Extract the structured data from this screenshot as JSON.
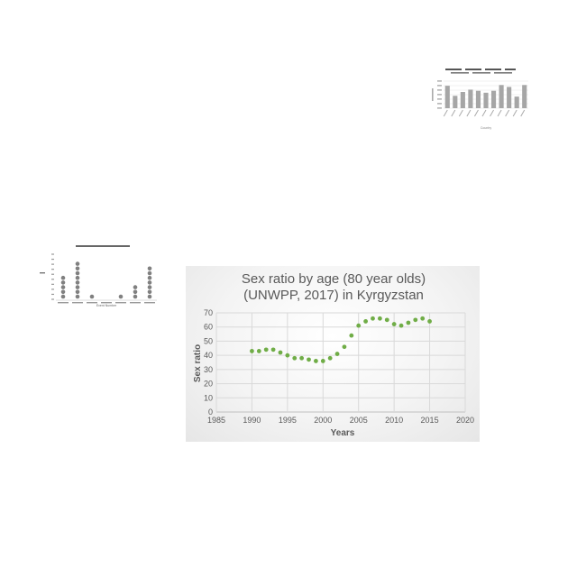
{
  "chart_data": [
    {
      "type": "line",
      "title": "Sex ratio by age (80 year olds)",
      "subtitle": "(UNWPP, 2017) in Kyrgyzstan",
      "xlabel": "Years",
      "ylabel": "Sex ratio",
      "xlim": [
        1985,
        2020
      ],
      "ylim": [
        0,
        70
      ],
      "x_ticks": [
        "1985",
        "1990",
        "1995",
        "2000",
        "2005",
        "2010",
        "2015",
        "2020"
      ],
      "y_ticks": [
        "0",
        "10",
        "20",
        "30",
        "40",
        "50",
        "60",
        "70"
      ],
      "grid": true,
      "marker_color": "#70ad47",
      "series": [
        {
          "x": [
            1990,
            1991,
            1992,
            1993,
            1994,
            1995,
            1996,
            1997,
            1998,
            1999,
            2000,
            2001,
            2002,
            2003,
            2004,
            2005,
            2006,
            2007,
            2008,
            2009,
            2010,
            2011,
            2012,
            2013,
            2014,
            2015
          ],
          "values": [
            43,
            43,
            44,
            44,
            42,
            40,
            38,
            38,
            37,
            36,
            36,
            38,
            41,
            46,
            54,
            61,
            64,
            66,
            66,
            65,
            62,
            61,
            63,
            65,
            66,
            64
          ]
        }
      ]
    },
    {
      "type": "bar",
      "xlabel": "Country",
      "values": [
        58,
        32,
        42,
        48,
        45,
        40,
        45,
        60,
        55,
        30,
        60
      ],
      "ylim": [
        0,
        70
      ],
      "bar_color": "#a6a6a6"
    },
    {
      "type": "scatter",
      "xlabel": "Event Number",
      "values": [
        5,
        8,
        1,
        0,
        1,
        3,
        7
      ],
      "ylim": [
        0,
        10
      ],
      "marker_color": "#808080"
    }
  ]
}
